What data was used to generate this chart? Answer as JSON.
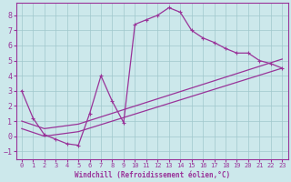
{
  "xlabel": "Windchill (Refroidissement éolien,°C)",
  "bg_color": "#cce8eb",
  "line_color": "#993399",
  "xlim": [
    -0.5,
    23.5
  ],
  "ylim": [
    -1.5,
    8.8
  ],
  "xticks": [
    0,
    1,
    2,
    3,
    4,
    5,
    6,
    7,
    8,
    9,
    10,
    11,
    12,
    13,
    14,
    15,
    16,
    17,
    18,
    19,
    20,
    21,
    22,
    23
  ],
  "yticks": [
    -1,
    0,
    1,
    2,
    3,
    4,
    5,
    6,
    7,
    8
  ],
  "curve1_x": [
    0,
    1,
    2,
    3,
    4,
    5,
    6,
    7,
    8,
    9,
    10,
    11,
    12,
    13,
    14,
    15,
    16,
    17,
    18,
    19,
    20,
    21,
    22,
    23
  ],
  "curve1_y": [
    3.0,
    1.2,
    0.1,
    -0.2,
    -0.5,
    -0.6,
    1.5,
    4.0,
    2.3,
    0.9,
    7.4,
    7.7,
    8.0,
    8.5,
    8.2,
    7.0,
    6.5,
    6.2,
    5.8,
    5.5,
    5.5,
    5.0,
    4.8,
    4.5
  ],
  "curve2_x": [
    0,
    2,
    5,
    23
  ],
  "curve2_y": [
    1.0,
    0.5,
    0.8,
    5.1
  ],
  "curve3_x": [
    0,
    2,
    5,
    23
  ],
  "curve3_y": [
    0.5,
    0.0,
    0.3,
    4.5
  ]
}
